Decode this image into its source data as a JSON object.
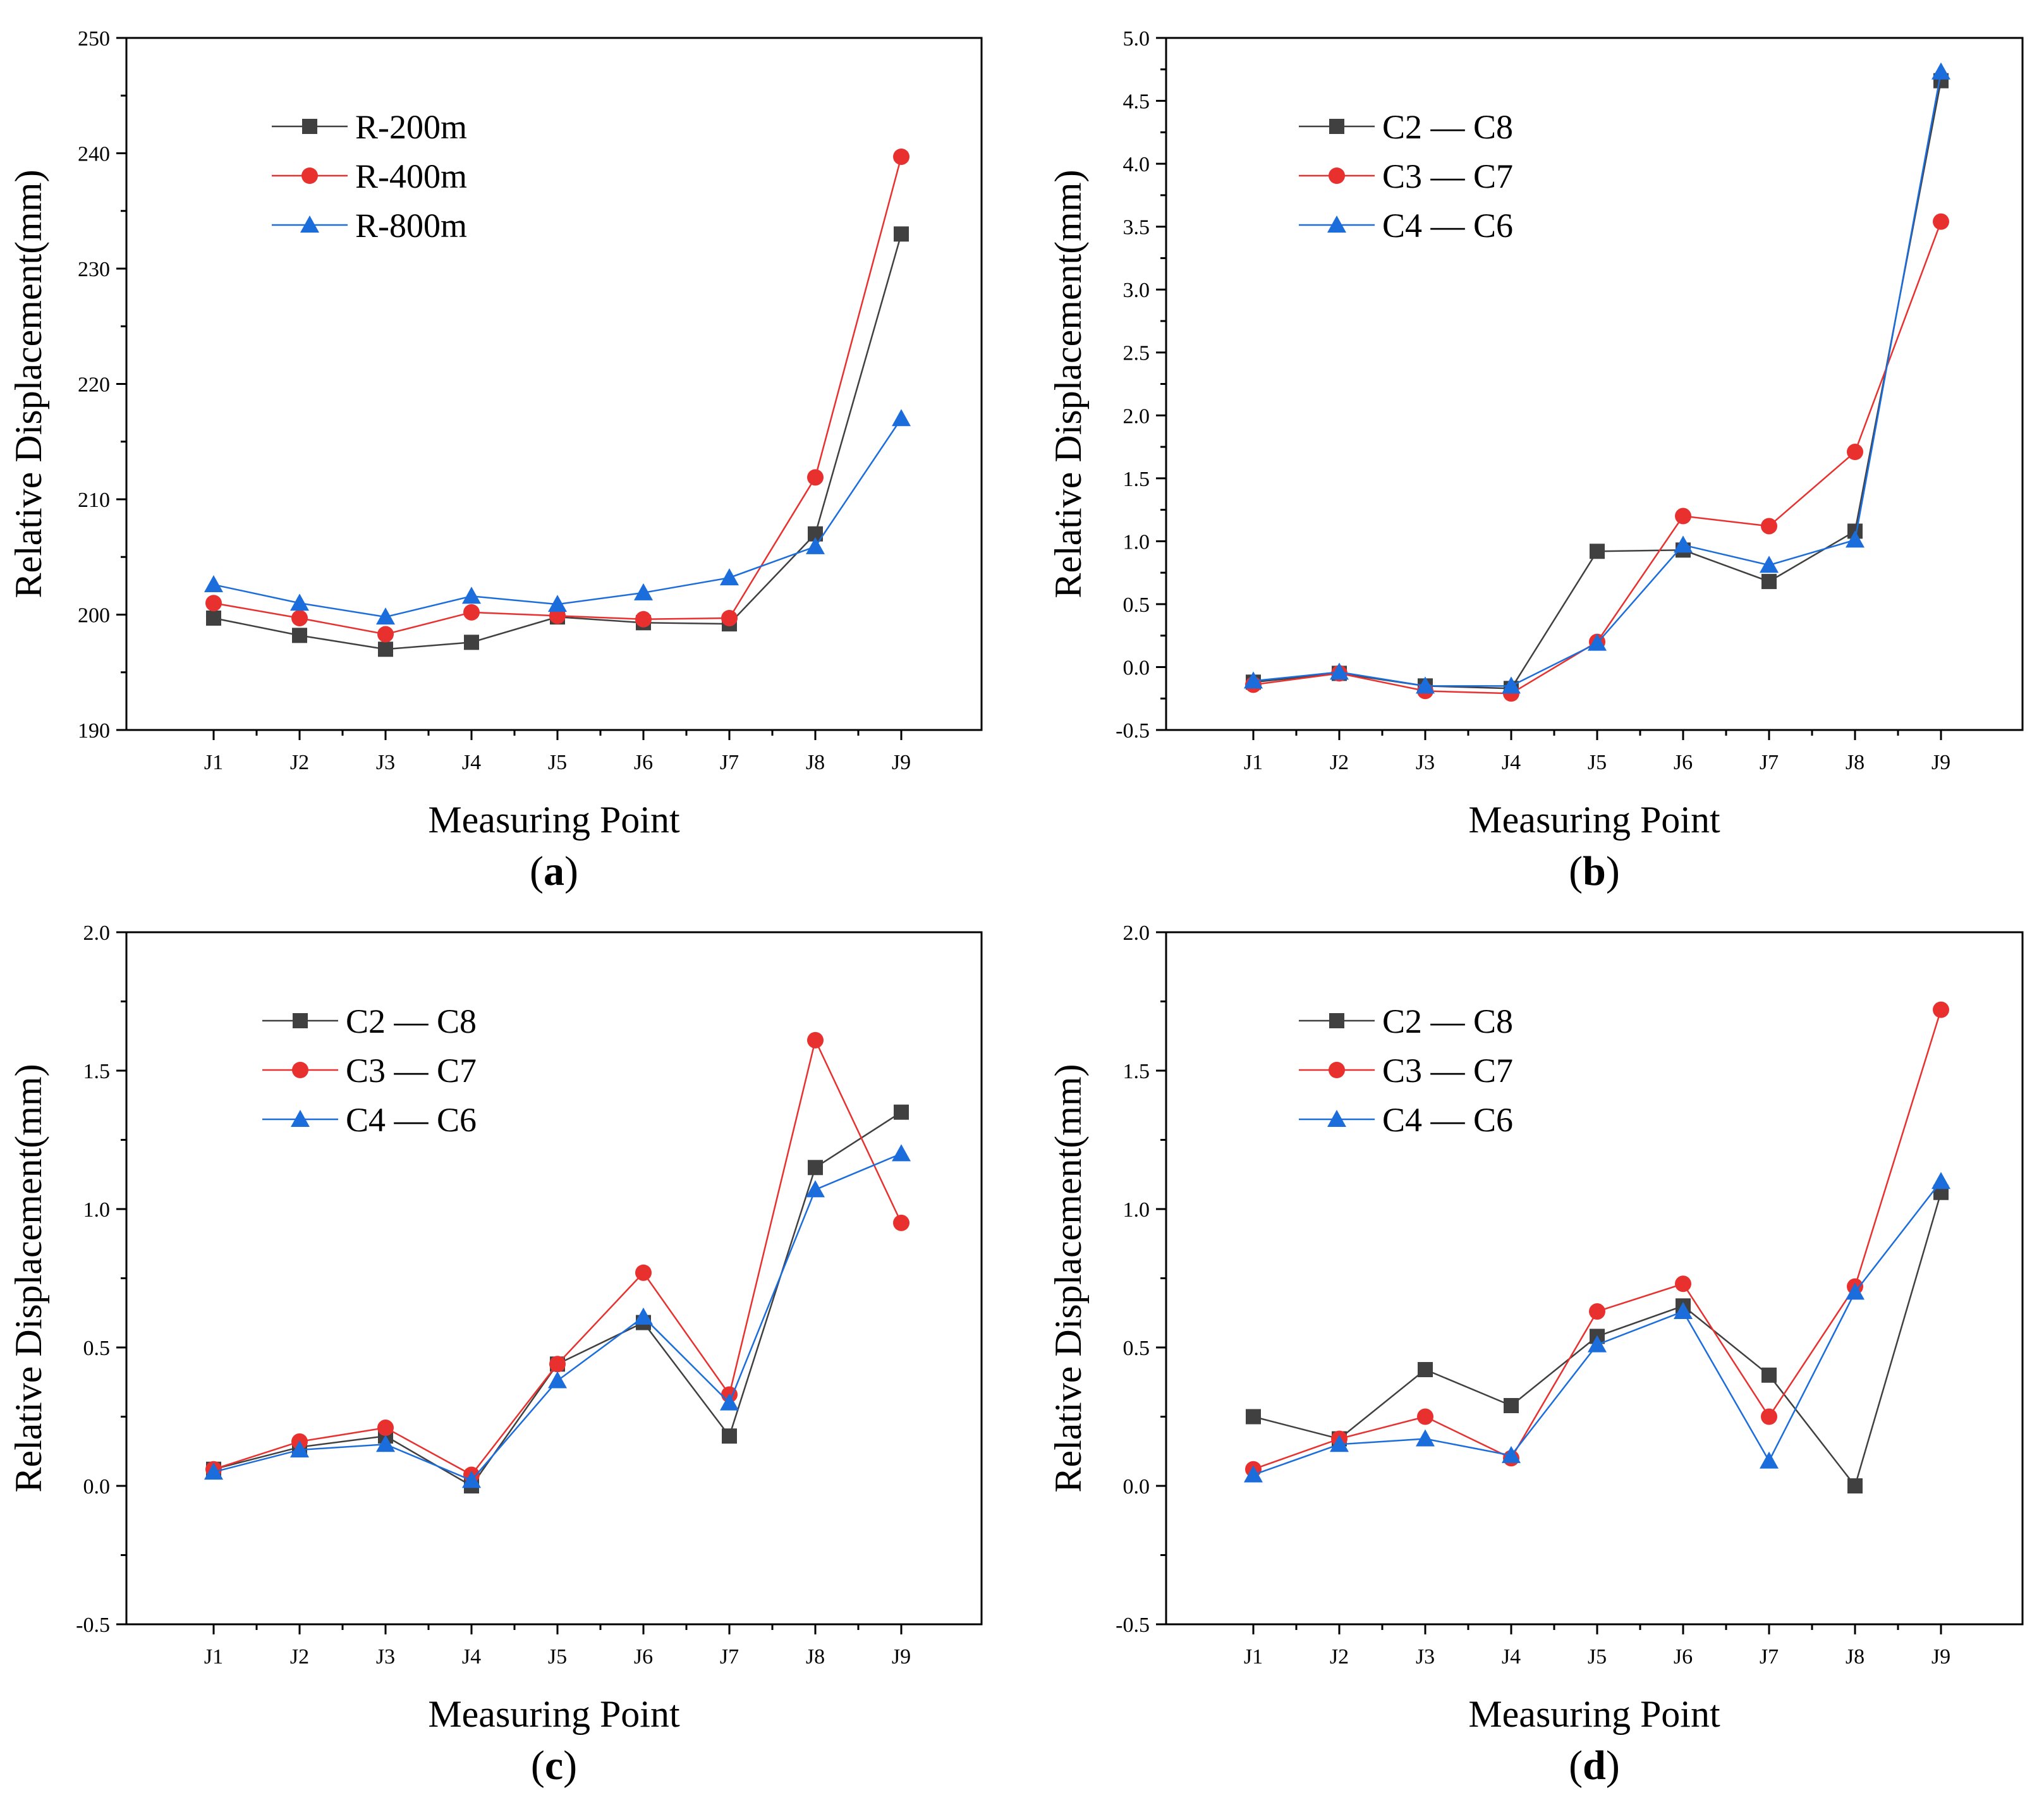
{
  "figure": {
    "colors": {
      "series_1": "#404040",
      "series_2": "#e8312f",
      "series_3": "#1c6ddc",
      "axis": "#000000"
    }
  },
  "chart_data": [
    {
      "type": "line",
      "panel_label": "a",
      "xlabel": "Measuring Point",
      "ylabel": "Relative Displacement(mm)",
      "categories": [
        "J1",
        "J2",
        "J3",
        "J4",
        "J5",
        "J6",
        "J7",
        "J8",
        "J9"
      ],
      "ylim": [
        190,
        250
      ],
      "yticks": [
        190,
        200,
        210,
        220,
        230,
        240,
        250
      ],
      "ytick_labels": [
        "190",
        "200",
        "210",
        "220",
        "230",
        "240",
        "250"
      ],
      "legend_position": "top-left",
      "series": [
        {
          "name": "R-200m",
          "marker": "square",
          "values": [
            199.7,
            198.2,
            197.0,
            197.6,
            199.8,
            199.3,
            199.2,
            207.0,
            233.0
          ]
        },
        {
          "name": "R-400m",
          "marker": "circle",
          "values": [
            201.0,
            199.7,
            198.3,
            200.2,
            199.9,
            199.6,
            199.7,
            211.9,
            239.7
          ]
        },
        {
          "name": "R-800m",
          "marker": "triangle",
          "values": [
            202.6,
            201.0,
            199.8,
            201.6,
            200.9,
            201.9,
            203.2,
            205.9,
            217.0
          ]
        }
      ]
    },
    {
      "type": "line",
      "panel_label": "b",
      "xlabel": "Measuring Point",
      "ylabel": "Relative Displacement(mm)",
      "categories": [
        "J1",
        "J2",
        "J3",
        "J4",
        "J5",
        "J6",
        "J7",
        "J8",
        "J9"
      ],
      "ylim": [
        -0.5,
        5.0
      ],
      "yticks": [
        -0.5,
        0.0,
        0.5,
        1.0,
        1.5,
        2.0,
        2.5,
        3.0,
        3.5,
        4.0,
        4.5,
        5.0
      ],
      "ytick_labels": [
        "-0.5",
        "0.0",
        "0.5",
        "1.0",
        "1.5",
        "2.0",
        "2.5",
        "3.0",
        "3.5",
        "4.0",
        "4.5",
        "5.0"
      ],
      "legend_position": "top-left",
      "series": [
        {
          "name": "C2 — C8",
          "marker": "square",
          "values": [
            -0.12,
            -0.05,
            -0.15,
            -0.17,
            0.92,
            0.93,
            0.68,
            1.08,
            4.66
          ]
        },
        {
          "name": "C3 — C7",
          "marker": "circle",
          "values": [
            -0.14,
            -0.05,
            -0.19,
            -0.21,
            0.2,
            1.2,
            1.12,
            1.71,
            3.54
          ]
        },
        {
          "name": "C4 — C6",
          "marker": "triangle",
          "values": [
            -0.11,
            -0.04,
            -0.15,
            -0.15,
            0.19,
            0.97,
            0.81,
            1.01,
            4.73
          ]
        }
      ]
    },
    {
      "type": "line",
      "panel_label": "c",
      "xlabel": "Measuring Point",
      "ylabel": "Relative Displacement(mm)",
      "categories": [
        "J1",
        "J2",
        "J3",
        "J4",
        "J5",
        "J6",
        "J7",
        "J8",
        "J9"
      ],
      "ylim": [
        -0.5,
        2.0
      ],
      "yticks": [
        -0.5,
        0.0,
        0.5,
        1.0,
        1.5,
        2.0
      ],
      "ytick_labels": [
        "-0.5",
        "0.0",
        "0.5",
        "1.0",
        "1.5",
        "2.0"
      ],
      "legend_position": "top-left",
      "series": [
        {
          "name": "C2 — C8",
          "marker": "square",
          "values": [
            0.06,
            0.14,
            0.18,
            0.0,
            0.44,
            0.59,
            0.18,
            1.15,
            1.35
          ]
        },
        {
          "name": "C3 — C7",
          "marker": "circle",
          "values": [
            0.06,
            0.16,
            0.21,
            0.04,
            0.44,
            0.77,
            0.33,
            1.61,
            0.95
          ]
        },
        {
          "name": "C4 — C6",
          "marker": "triangle",
          "values": [
            0.05,
            0.13,
            0.15,
            0.02,
            0.38,
            0.61,
            0.3,
            1.07,
            1.2
          ]
        }
      ]
    },
    {
      "type": "line",
      "panel_label": "d",
      "xlabel": "Measuring Point",
      "ylabel": "Relative Displacement(mm)",
      "categories": [
        "J1",
        "J2",
        "J3",
        "J4",
        "J5",
        "J6",
        "J7",
        "J8",
        "J9"
      ],
      "ylim": [
        -0.5,
        2.0
      ],
      "yticks": [
        -0.5,
        0.0,
        0.5,
        1.0,
        1.5,
        2.0
      ],
      "ytick_labels": [
        "-0.5",
        "0.0",
        "0.5",
        "1.0",
        "1.5",
        "2.0"
      ],
      "legend_position": "top-left",
      "series": [
        {
          "name": "C2 — C8",
          "marker": "square",
          "values": [
            0.25,
            0.17,
            0.42,
            0.29,
            0.54,
            0.65,
            0.4,
            0.0,
            1.06
          ]
        },
        {
          "name": "C3 — C7",
          "marker": "circle",
          "values": [
            0.06,
            0.17,
            0.25,
            0.1,
            0.63,
            0.73,
            0.25,
            0.72,
            1.72
          ]
        },
        {
          "name": "C4 — C6",
          "marker": "triangle",
          "values": [
            0.04,
            0.15,
            0.17,
            0.11,
            0.51,
            0.63,
            0.09,
            0.7,
            1.1
          ]
        }
      ]
    }
  ]
}
